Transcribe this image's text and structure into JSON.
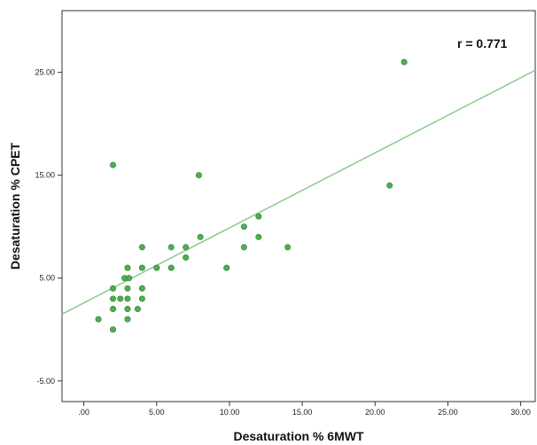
{
  "chart_data": {
    "type": "scatter",
    "xlabel": "Desaturation % 6MWT",
    "ylabel": "Desaturation % CPET",
    "xlim": [
      -1.5,
      31
    ],
    "ylim": [
      -7,
      31
    ],
    "xticks": [
      0,
      5,
      10,
      15,
      20,
      25,
      30
    ],
    "xtick_labels": [
      ".00",
      "5.00",
      "10.00",
      "15.00",
      "20.00",
      "25.00",
      "30.00"
    ],
    "yticks": [
      -5,
      5,
      15,
      25
    ],
    "ytick_labels": [
      "-5.00",
      "5.00",
      "15.00",
      "25.00"
    ],
    "annotation": "r = 0.771",
    "grid": false,
    "points": [
      {
        "x": 1,
        "y": 1
      },
      {
        "x": 2,
        "y": 0
      },
      {
        "x": 2,
        "y": 2
      },
      {
        "x": 2,
        "y": 3
      },
      {
        "x": 2.5,
        "y": 3
      },
      {
        "x": 2,
        "y": 4
      },
      {
        "x": 2,
        "y": 16
      },
      {
        "x": 3,
        "y": 1
      },
      {
        "x": 3,
        "y": 2
      },
      {
        "x": 3,
        "y": 3
      },
      {
        "x": 3,
        "y": 4
      },
      {
        "x": 2.8,
        "y": 5
      },
      {
        "x": 3.1,
        "y": 5
      },
      {
        "x": 3,
        "y": 6
      },
      {
        "x": 3.7,
        "y": 2
      },
      {
        "x": 4,
        "y": 3
      },
      {
        "x": 4,
        "y": 4
      },
      {
        "x": 4,
        "y": 6
      },
      {
        "x": 4,
        "y": 8
      },
      {
        "x": 5,
        "y": 6
      },
      {
        "x": 6,
        "y": 6
      },
      {
        "x": 6,
        "y": 8
      },
      {
        "x": 7,
        "y": 7
      },
      {
        "x": 7,
        "y": 8
      },
      {
        "x": 8,
        "y": 9
      },
      {
        "x": 7.9,
        "y": 15
      },
      {
        "x": 9.8,
        "y": 6
      },
      {
        "x": 11,
        "y": 8
      },
      {
        "x": 11,
        "y": 10
      },
      {
        "x": 12,
        "y": 9
      },
      {
        "x": 12,
        "y": 11
      },
      {
        "x": 14,
        "y": 8
      },
      {
        "x": 21,
        "y": 14
      },
      {
        "x": 22,
        "y": 26
      }
    ],
    "fit_line": {
      "x": [
        -1.5,
        31
      ],
      "y": [
        1.5,
        25.2
      ]
    },
    "colors": {
      "point_fill": "#4caf50",
      "point_stroke": "#2e7d32",
      "fit_line": "#8fce8f",
      "frame": "#333333"
    }
  }
}
